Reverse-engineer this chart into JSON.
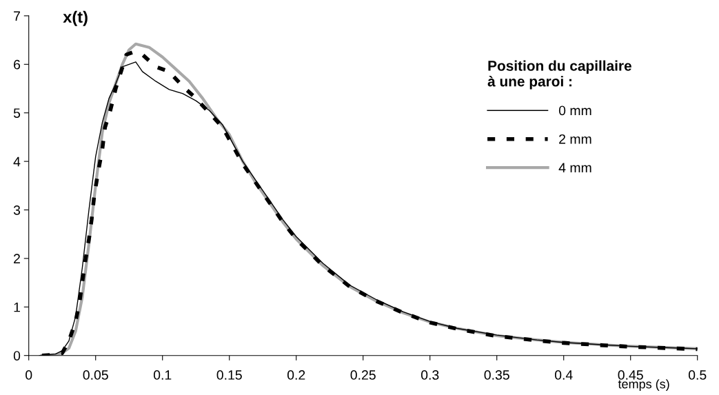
{
  "chart_data": {
    "type": "line",
    "ylabel": "x(t)",
    "xlabel": "temps (s)",
    "legend_title": "Position du capillaire\nà une paroi :",
    "legend": "right",
    "grid": false,
    "xlim": [
      0,
      0.5
    ],
    "ylim": [
      0,
      7
    ],
    "xticks": [
      0,
      0.05,
      0.1,
      0.15,
      0.2,
      0.25,
      0.3,
      0.35,
      0.4,
      0.45,
      0.5
    ],
    "yticks": [
      0,
      1,
      2,
      3,
      4,
      5,
      6,
      7
    ],
    "series": [
      {
        "name": "0 mm",
        "color": "#000000",
        "line_style": "solid",
        "x": [
          0.008,
          0.02,
          0.025,
          0.03,
          0.035,
          0.04,
          0.045,
          0.05,
          0.055,
          0.06,
          0.065,
          0.07,
          0.08,
          0.085,
          0.095,
          0.105,
          0.115,
          0.125,
          0.135,
          0.145,
          0.15,
          0.16,
          0.17,
          0.18,
          0.19,
          0.2,
          0.22,
          0.24,
          0.26,
          0.28,
          0.3,
          0.32,
          0.35,
          0.38,
          0.4,
          0.43,
          0.45,
          0.48,
          0.5
        ],
        "values": [
          0,
          0.03,
          0.1,
          0.3,
          0.8,
          1.8,
          3.0,
          4.1,
          4.8,
          5.3,
          5.6,
          5.95,
          6.05,
          5.85,
          5.65,
          5.48,
          5.4,
          5.25,
          5.05,
          4.75,
          4.5,
          4.0,
          3.6,
          3.2,
          2.8,
          2.45,
          1.9,
          1.45,
          1.15,
          0.9,
          0.7,
          0.56,
          0.42,
          0.32,
          0.27,
          0.22,
          0.19,
          0.16,
          0.14
        ]
      },
      {
        "name": "2 mm",
        "color": "#000000",
        "line_style": "dashed",
        "x": [
          0.01,
          0.02,
          0.025,
          0.03,
          0.035,
          0.038,
          0.04,
          0.042,
          0.045,
          0.047,
          0.049,
          0.052,
          0.055,
          0.057,
          0.061,
          0.065,
          0.069,
          0.073,
          0.078,
          0.085,
          0.095,
          0.105,
          0.115,
          0.125,
          0.135,
          0.145,
          0.15,
          0.16,
          0.17,
          0.18,
          0.19,
          0.2,
          0.22,
          0.24,
          0.26,
          0.28,
          0.3,
          0.32,
          0.35,
          0.38,
          0.4,
          0.43,
          0.45,
          0.48,
          0.5
        ],
        "values": [
          0,
          0.02,
          0.05,
          0.3,
          0.7,
          1.1,
          1.5,
          1.9,
          2.4,
          2.8,
          3.3,
          3.8,
          4.25,
          4.7,
          5.05,
          5.5,
          5.85,
          6.2,
          6.25,
          6.2,
          5.95,
          5.85,
          5.55,
          5.3,
          5.0,
          4.7,
          4.45,
          3.95,
          3.55,
          3.15,
          2.75,
          2.4,
          1.85,
          1.42,
          1.12,
          0.88,
          0.68,
          0.55,
          0.4,
          0.31,
          0.26,
          0.21,
          0.18,
          0.15,
          0.13
        ]
      },
      {
        "name": "4 mm",
        "color": "#a8a8a8",
        "line_style": "solid",
        "x": [
          0.01,
          0.02,
          0.025,
          0.03,
          0.035,
          0.04,
          0.045,
          0.05,
          0.055,
          0.06,
          0.065,
          0.07,
          0.075,
          0.08,
          0.09,
          0.1,
          0.11,
          0.12,
          0.13,
          0.14,
          0.15,
          0.16,
          0.17,
          0.18,
          0.19,
          0.2,
          0.22,
          0.24,
          0.26,
          0.28,
          0.3,
          0.32,
          0.35,
          0.38,
          0.4,
          0.43,
          0.45,
          0.48,
          0.5
        ],
        "values": [
          0,
          0.02,
          0.05,
          0.15,
          0.5,
          1.2,
          2.3,
          3.5,
          4.6,
          5.2,
          5.6,
          6.0,
          6.3,
          6.42,
          6.35,
          6.15,
          5.9,
          5.65,
          5.3,
          4.9,
          4.55,
          4.0,
          3.55,
          3.15,
          2.75,
          2.4,
          1.85,
          1.42,
          1.12,
          0.88,
          0.69,
          0.56,
          0.41,
          0.32,
          0.27,
          0.22,
          0.19,
          0.16,
          0.14
        ]
      }
    ]
  }
}
